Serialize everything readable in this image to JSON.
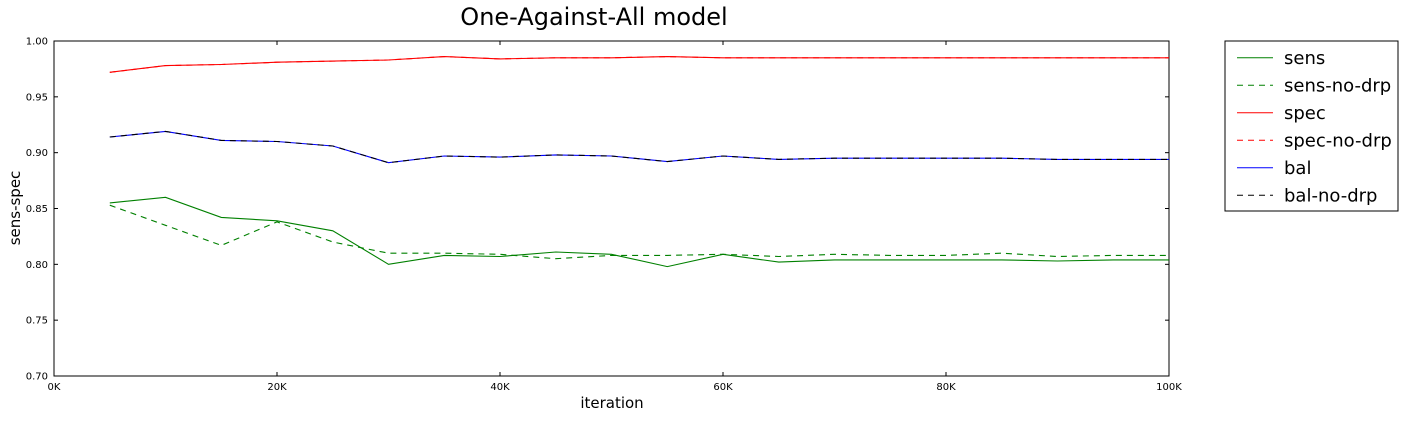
{
  "chart_data": {
    "type": "line",
    "title": "One-Against-All model",
    "xlabel": "iteration",
    "ylabel": "sens-spec",
    "xlim": [
      0,
      100000
    ],
    "ylim": [
      0.7,
      1.0
    ],
    "x_ticks": [
      0,
      20000,
      40000,
      60000,
      80000,
      100000
    ],
    "x_tick_labels": [
      "0K",
      "20K",
      "40K",
      "60K",
      "80K",
      "100K"
    ],
    "y_ticks": [
      0.7,
      0.75,
      0.8,
      0.85,
      0.9,
      0.95,
      1.0
    ],
    "y_tick_labels": [
      "0.70",
      "0.75",
      "0.80",
      "0.85",
      "0.90",
      "0.95",
      "1.00"
    ],
    "grid": false,
    "legend_placement": "outside-right",
    "x": [
      5000,
      10000,
      15000,
      20000,
      25000,
      30000,
      35000,
      40000,
      45000,
      50000,
      55000,
      60000,
      65000,
      70000,
      75000,
      80000,
      85000,
      90000,
      95000,
      100000
    ],
    "series": [
      {
        "name": "sens",
        "color": "#008000",
        "dash": "solid",
        "values": [
          0.855,
          0.86,
          0.842,
          0.839,
          0.83,
          0.8,
          0.808,
          0.807,
          0.811,
          0.809,
          0.798,
          0.809,
          0.802,
          0.804,
          0.804,
          0.804,
          0.804,
          0.803,
          0.804,
          0.804
        ]
      },
      {
        "name": "sens-no-drp",
        "color": "#008000",
        "dash": "dashed",
        "values": [
          0.853,
          0.835,
          0.817,
          0.838,
          0.82,
          0.81,
          0.81,
          0.809,
          0.805,
          0.808,
          0.808,
          0.809,
          0.807,
          0.809,
          0.808,
          0.808,
          0.81,
          0.807,
          0.808,
          0.808
        ]
      },
      {
        "name": "spec",
        "color": "#ff0000",
        "dash": "solid",
        "values": [
          0.972,
          0.978,
          0.979,
          0.981,
          0.982,
          0.983,
          0.986,
          0.984,
          0.985,
          0.985,
          0.986,
          0.985,
          0.985,
          0.985,
          0.985,
          0.985,
          0.985,
          0.985,
          0.985,
          0.985
        ]
      },
      {
        "name": "spec-no-drp",
        "color": "#ff0000",
        "dash": "dashed",
        "values": [
          0.972,
          0.978,
          0.979,
          0.981,
          0.982,
          0.983,
          0.986,
          0.984,
          0.985,
          0.985,
          0.986,
          0.985,
          0.985,
          0.985,
          0.985,
          0.985,
          0.985,
          0.985,
          0.985,
          0.985
        ]
      },
      {
        "name": "bal",
        "color": "#0000ff",
        "dash": "solid",
        "values": [
          0.914,
          0.919,
          0.911,
          0.91,
          0.906,
          0.891,
          0.897,
          0.896,
          0.898,
          0.897,
          0.892,
          0.897,
          0.894,
          0.895,
          0.895,
          0.895,
          0.895,
          0.894,
          0.894,
          0.894
        ]
      },
      {
        "name": "bal-no-drp",
        "color": "#000000",
        "dash": "dashed",
        "values": [
          0.914,
          0.919,
          0.911,
          0.91,
          0.906,
          0.891,
          0.897,
          0.896,
          0.898,
          0.897,
          0.892,
          0.897,
          0.894,
          0.895,
          0.895,
          0.895,
          0.895,
          0.894,
          0.894,
          0.894
        ]
      }
    ]
  }
}
